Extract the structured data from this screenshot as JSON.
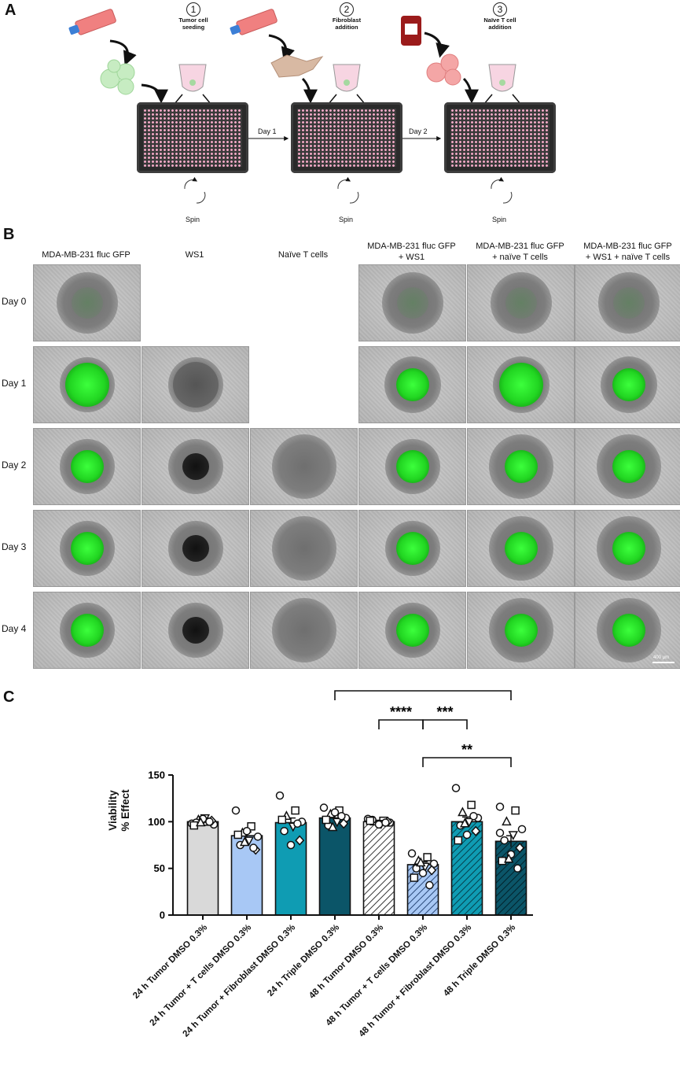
{
  "panel_a": {
    "letter": "A",
    "steps": [
      {
        "num": "1",
        "label_line1": "Tumor cell",
        "label_line2": "seeding"
      },
      {
        "num": "2",
        "label_line1": "Fibroblast",
        "label_line2": "addition"
      },
      {
        "num": "3",
        "label_line1": "Naïve T cell",
        "label_line2": "addition"
      }
    ],
    "day_labels": [
      "Day 1",
      "Day 2"
    ],
    "spin_label": "Spin"
  },
  "panel_b": {
    "letter": "B",
    "columns": [
      {
        "line1": "MDA-MB-231 fluc GFP",
        "line2": ""
      },
      {
        "line1": "WS1",
        "line2": ""
      },
      {
        "line1": "Naïve T cells",
        "line2": ""
      },
      {
        "line1": "MDA-MB-231 fluc GFP",
        "line2": "+ WS1"
      },
      {
        "line1": "MDA-MB-231 fluc GFP",
        "line2": "+ naïve T cells"
      },
      {
        "line1": "MDA-MB-231 fluc GFP",
        "line2": "+ WS1 + naïve T cells"
      }
    ],
    "rows": [
      "Day 0",
      "Day 1",
      "Day 2",
      "Day 3",
      "Day 4"
    ],
    "scale_bar": "400 μm"
  },
  "panel_c": {
    "letter": "C",
    "chart_data": {
      "type": "bar",
      "ylabel_line1": "Viability",
      "ylabel_line2": "% Effect",
      "ylim": [
        0,
        150
      ],
      "yticks": [
        "0",
        "50",
        "100",
        "150"
      ],
      "categories": [
        "24 h Tumor DMSO 0.3%",
        "24 h Tumor + T cells DMSO 0.3%",
        "24 h Tumor + Fibroblast DMSO 0.3%",
        "24 h Triple DMSO 0.3%",
        "48 h Tumor DMSO 0.3%",
        "48 h Tumor + T cells DMSO 0.3%",
        "48 h Tumor + Fibroblast DMSO 0.3%",
        "48 h Triple DMSO 0.3%"
      ],
      "values": [
        100,
        85,
        99,
        104,
        100,
        54,
        100,
        79
      ],
      "errors": [
        2,
        4,
        5,
        3,
        1.5,
        3,
        5,
        6
      ],
      "bar_colors": [
        "#d9d9d9",
        "#a8c8f5",
        "#0f9cb3",
        "#0b5568",
        "#ffffff",
        "#a8c8f5",
        "#0f9cb3",
        "#0b5568"
      ],
      "hatched": [
        false,
        false,
        false,
        false,
        true,
        true,
        true,
        true
      ],
      "points": [
        [
          98,
          100,
          102,
          97,
          104,
          99,
          101,
          103,
          96,
          100,
          99
        ],
        [
          112,
          95,
          88,
          84,
          80,
          75,
          70,
          90,
          86,
          72,
          78
        ],
        [
          128,
          112,
          106,
          100,
          95,
          90,
          80,
          75,
          102,
          98
        ],
        [
          115,
          112,
          108,
          104,
          100,
          96,
          98,
          110,
          102,
          106,
          94
        ],
        [
          103,
          101,
          100,
          99,
          98,
          102,
          100,
          97,
          101,
          99
        ],
        [
          66,
          62,
          58,
          55,
          52,
          50,
          48,
          45,
          40,
          32,
          56
        ],
        [
          136,
          118,
          110,
          104,
          100,
          96,
          90,
          86,
          80,
          106,
          98
        ],
        [
          116,
          112,
          100,
          92,
          86,
          80,
          72,
          65,
          58,
          50,
          60,
          88
        ]
      ],
      "significance": [
        {
          "from": 3,
          "to": 7,
          "label": "*",
          "level": 3
        },
        {
          "from": 4,
          "to": 5,
          "label": "****",
          "level": 2
        },
        {
          "from": 5,
          "to": 6,
          "label": "***",
          "level": 2
        },
        {
          "from": 5,
          "to": 7,
          "label": "**",
          "level": 1
        }
      ]
    }
  }
}
